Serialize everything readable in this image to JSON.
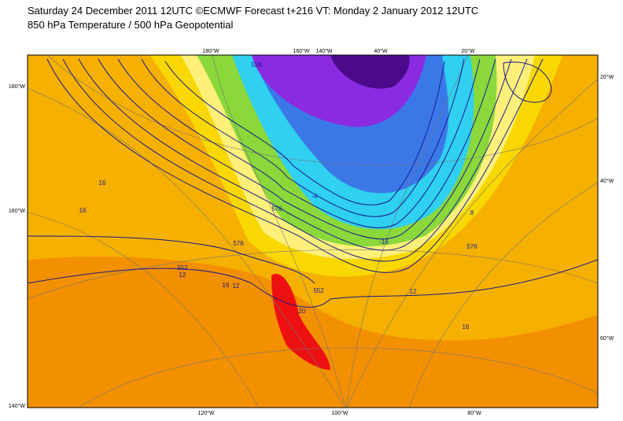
{
  "header": {
    "title": "Saturday 24 December 2011 12UTC ©ECMWF Forecast t+216 VT: Monday 2 January 2012 12UTC",
    "subtitle": "850 hPa Temperature / 500 hPa Geopotential"
  },
  "map": {
    "left_labels": [
      "180°W",
      "160°W",
      "140°W"
    ],
    "bottom_labels": [
      "120°W",
      "100°W",
      "80°W"
    ],
    "top_labels": [
      "180°W",
      "160°W",
      "140°W",
      "40°W",
      "20°W"
    ],
    "right_labels": [
      "20°W",
      "40°W",
      "60°W"
    ],
    "contour_labels": [
      "16",
      "16",
      "12",
      "12",
      "16",
      "12",
      "16",
      "-16",
      "552",
      "576",
      "576",
      "576",
      "8",
      "-4",
      "20",
      "528",
      "552"
    ]
  }
}
